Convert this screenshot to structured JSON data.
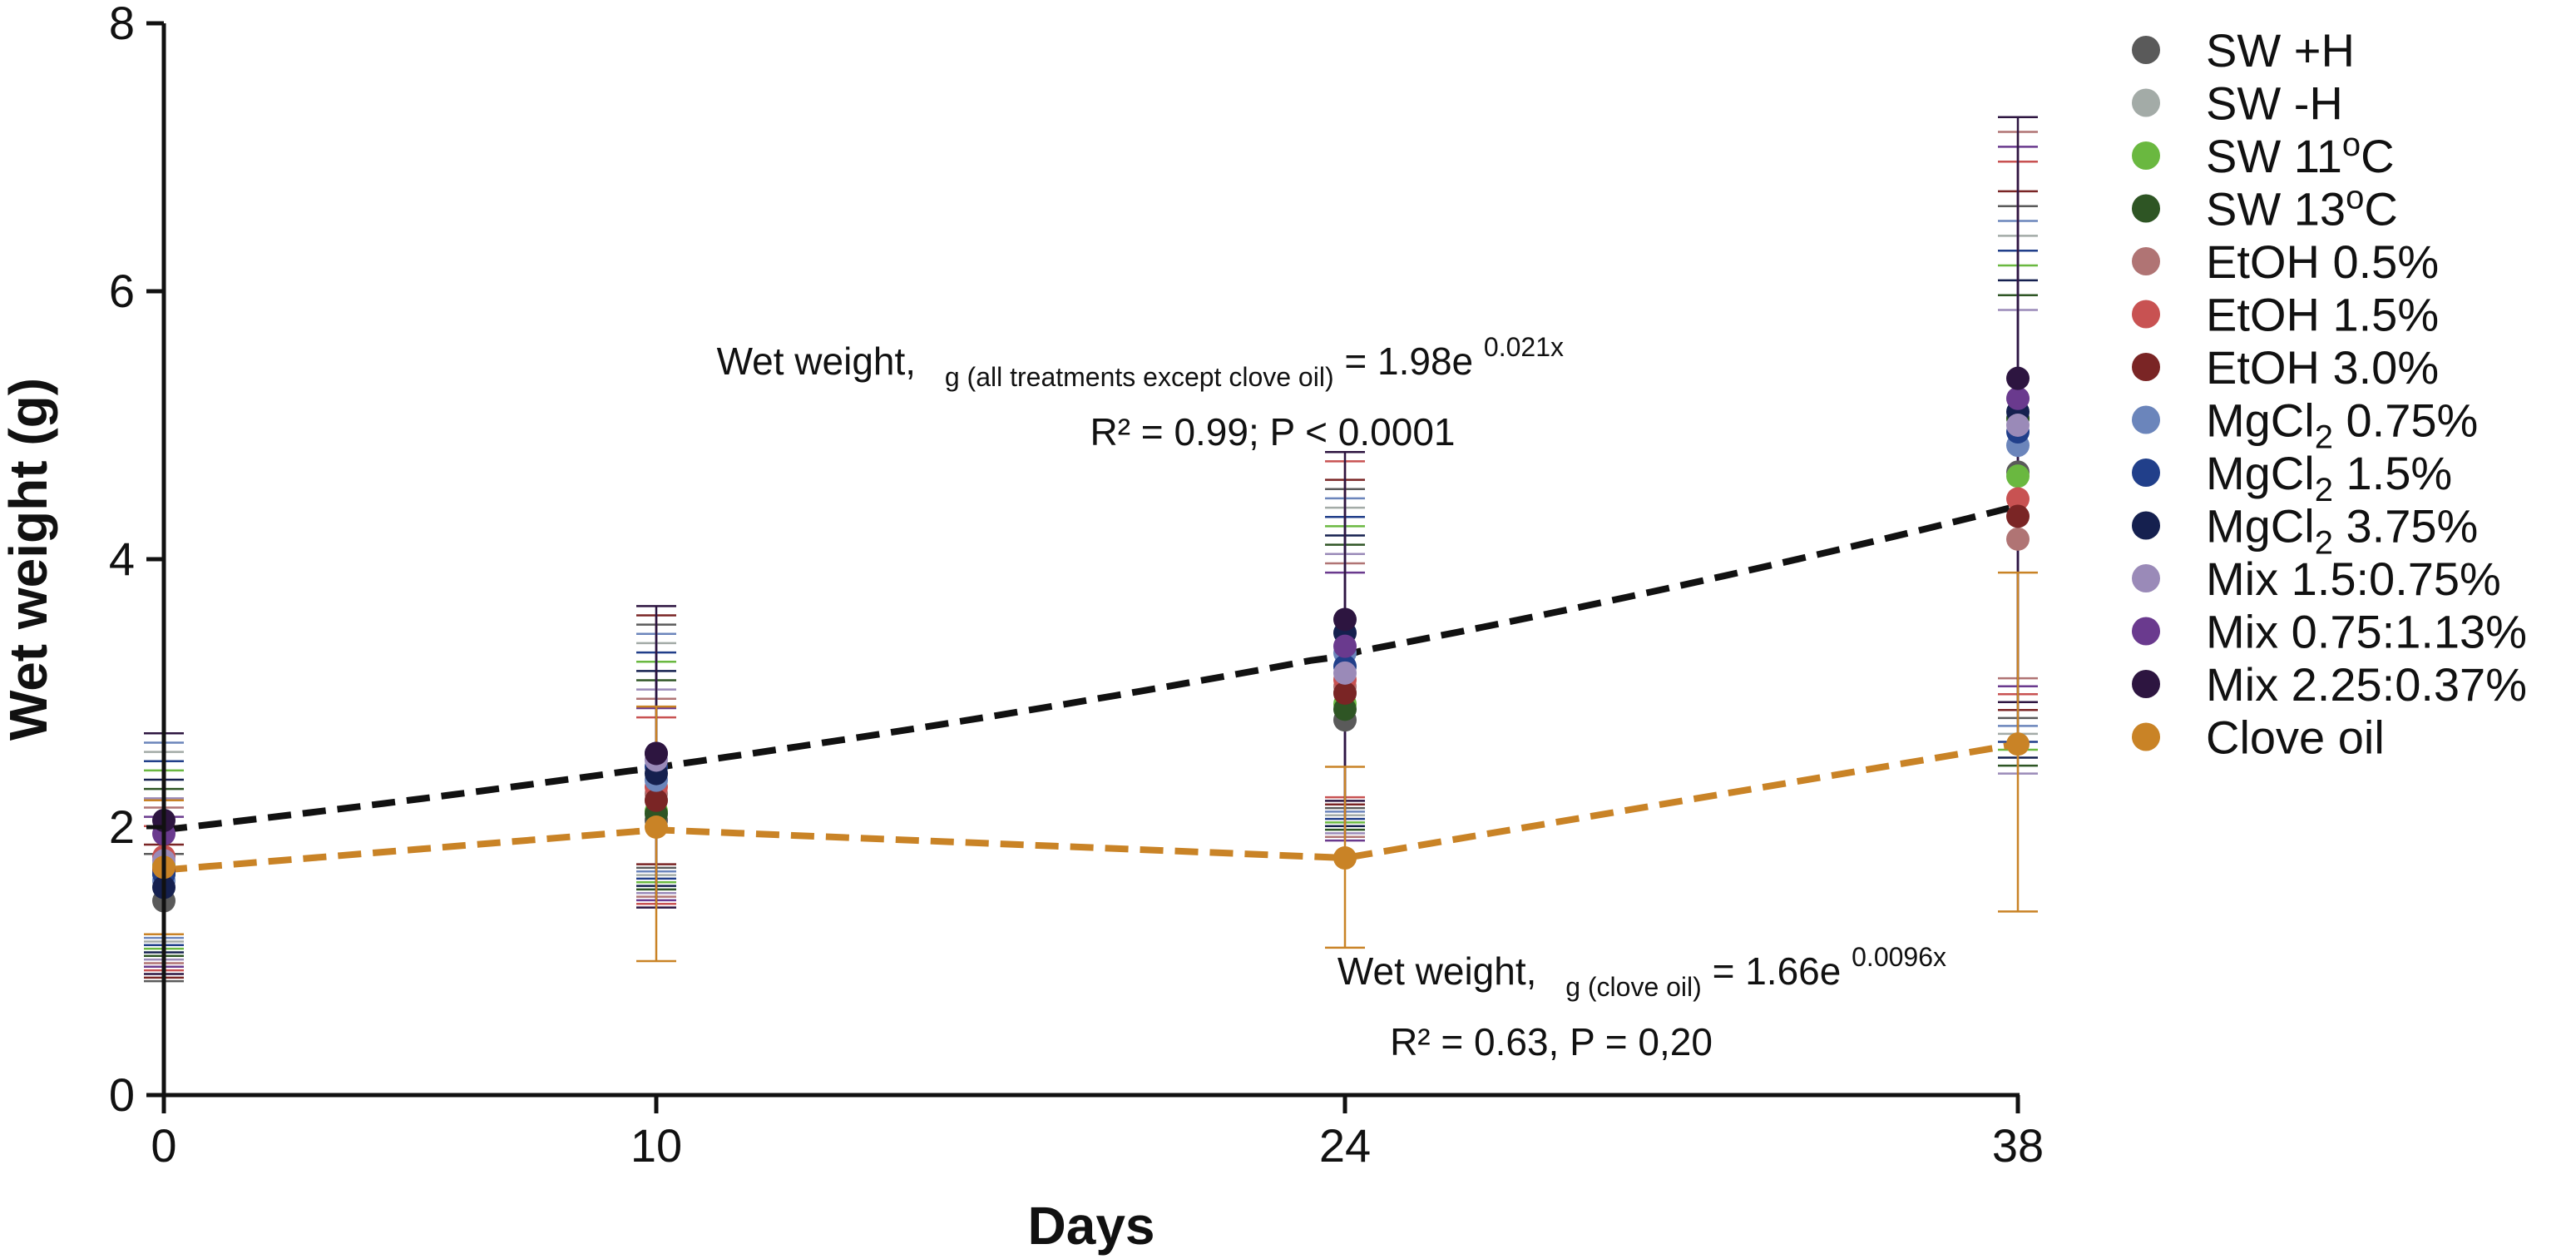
{
  "chart_data": {
    "type": "scatter",
    "xlabel": "Days",
    "ylabel": "Wet weight (g)",
    "x": [
      0,
      10,
      24,
      38
    ],
    "x_tick_labels": [
      "0",
      "10",
      "24",
      "38"
    ],
    "ylim": [
      0,
      8
    ],
    "y_ticks": [
      0,
      2,
      4,
      6,
      8
    ],
    "y_tick_labels": [
      "0",
      "2",
      "4",
      "6",
      "8"
    ],
    "grid": false,
    "legend_position": "right",
    "series": [
      {
        "name": "SW +H",
        "parts": [
          {
            "t": "SW +H"
          }
        ],
        "color": "#5a5a5a",
        "values": [
          1.45,
          2.05,
          2.8,
          4.65
        ]
      },
      {
        "name": "SW -H",
        "parts": [
          {
            "t": "SW -H"
          }
        ],
        "color": "#a3aba7",
        "values": [
          1.6,
          2.2,
          3.0,
          5.2
        ]
      },
      {
        "name": "SW 11oC",
        "parts": [
          {
            "t": "SW 11"
          },
          {
            "t": "o",
            "sup": true
          },
          {
            "t": "C"
          }
        ],
        "color": "#6ab840",
        "values": [
          1.72,
          2.12,
          2.92,
          4.62
        ]
      },
      {
        "name": "SW 13oC",
        "parts": [
          {
            "t": "SW 13"
          },
          {
            "t": "o",
            "sup": true
          },
          {
            "t": "C"
          }
        ],
        "color": "#2e5524",
        "values": [
          1.65,
          2.1,
          2.88,
          5.05
        ]
      },
      {
        "name": "EtOH 0.5%",
        "parts": [
          {
            "t": "EtOH 0.5%"
          }
        ],
        "color": "#b07474",
        "values": [
          1.7,
          2.25,
          3.05,
          4.15
        ]
      },
      {
        "name": "EtOH 1.5%",
        "parts": [
          {
            "t": "EtOH 1.5%"
          }
        ],
        "color": "#c85252",
        "values": [
          1.78,
          2.3,
          3.1,
          4.45
        ]
      },
      {
        "name": "EtOH 3.0%",
        "parts": [
          {
            "t": "EtOH 3.0%"
          }
        ],
        "color": "#7a2525",
        "values": [
          1.68,
          2.2,
          3.0,
          4.32
        ]
      },
      {
        "name": "MgCl2 0.75%",
        "parts": [
          {
            "t": "MgCl"
          },
          {
            "t": "2",
            "sub": true
          },
          {
            "t": " 0.75%"
          }
        ],
        "color": "#6b85bb",
        "values": [
          1.6,
          2.35,
          3.3,
          4.85
        ]
      },
      {
        "name": "MgCl2 1.5%",
        "parts": [
          {
            "t": "MgCl"
          },
          {
            "t": "2",
            "sub": true
          },
          {
            "t": " 1.5%"
          }
        ],
        "color": "#213f8a",
        "values": [
          1.65,
          2.45,
          3.2,
          4.95
        ]
      },
      {
        "name": "MgCl2 3.75%",
        "parts": [
          {
            "t": "MgCl"
          },
          {
            "t": "2",
            "sub": true
          },
          {
            "t": " 3.75%"
          }
        ],
        "color": "#15204f",
        "values": [
          1.55,
          2.4,
          3.45,
          5.1
        ]
      },
      {
        "name": "Mix 1.5:0.75%",
        "parts": [
          {
            "t": "Mix 1.5:0.75%"
          }
        ],
        "color": "#9a8ab8",
        "values": [
          1.75,
          2.5,
          3.15,
          5.0
        ]
      },
      {
        "name": "Mix 0.75:1.13%",
        "parts": [
          {
            "t": "Mix 0.75:1.13%"
          }
        ],
        "color": "#6a3a8e",
        "values": [
          1.95,
          2.55,
          3.35,
          5.2
        ]
      },
      {
        "name": "Mix 2.25:0.37%",
        "parts": [
          {
            "t": "Mix 2.25:0.37%"
          }
        ],
        "color": "#2d1540",
        "values": [
          2.05,
          2.55,
          3.55,
          5.35
        ]
      },
      {
        "name": "Clove oil",
        "parts": [
          {
            "t": "Clove oil"
          }
        ],
        "color": "#c98326",
        "values": [
          1.7,
          2.0,
          1.77,
          2.62
        ]
      }
    ],
    "error_bars": {
      "common": [
        {
          "x": 0,
          "low": 0.85,
          "high": 2.7
        },
        {
          "x": 10,
          "low": 1.4,
          "high": 3.65
        },
        {
          "x": 24,
          "low": 1.9,
          "high": 4.8
        },
        {
          "x": 38,
          "low": 2.4,
          "high": 7.3
        }
      ],
      "clove_oil": [
        {
          "x": 0,
          "low": 1.2,
          "high": 2.2
        },
        {
          "x": 10,
          "low": 1.0,
          "high": 2.9
        },
        {
          "x": 24,
          "low": 1.1,
          "high": 2.45
        },
        {
          "x": 38,
          "low": 1.37,
          "high": 3.9
        }
      ]
    },
    "fits": [
      {
        "name": "all treatments except clove oil",
        "color": "#111111",
        "a": 1.98,
        "b": 0.021,
        "x_range": [
          0,
          38
        ]
      },
      {
        "name": "clove oil",
        "color": "#c98326",
        "points": [
          [
            0,
            1.68
          ],
          [
            10,
            1.98
          ],
          [
            24,
            1.77
          ],
          [
            38,
            2.62
          ]
        ]
      }
    ],
    "annotations": [
      {
        "line1": {
          "main": "Wet weight,",
          "sub": "g (all treatments except clove oil)",
          "eq": " = 1.98e",
          "exp": "0.021x"
        },
        "line2": "R² = 0.99; P < 0.0001"
      },
      {
        "line1": {
          "main": "Wet weight,",
          "sub": "g (clove oil)",
          "eq": " = 1.66e",
          "exp": "0.0096x"
        },
        "line2": "R² = 0.63, P = 0,20"
      }
    ]
  }
}
